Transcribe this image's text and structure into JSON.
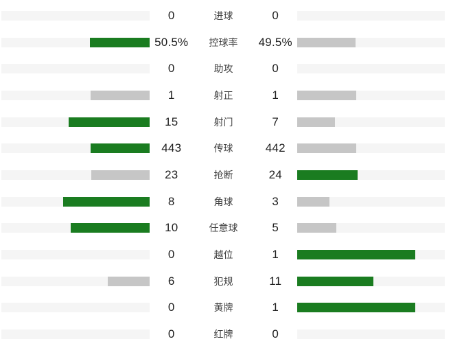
{
  "chart_data": {
    "type": "bar",
    "subtype": "mirrored-comparison-stats",
    "title": "",
    "grid": false,
    "legend_position": "none",
    "bar_max_fraction_of_track": 0.8,
    "colors": {
      "leading_bar": "#1a7c20",
      "trailing_bar": "#c6c6c6",
      "bar_track": "#f5f5f5",
      "value_text": "#1f1f1f",
      "label_text": "#404040",
      "background": "#ffffff"
    },
    "categories": [
      "进球",
      "控球率",
      "助攻",
      "射正",
      "射门",
      "传球",
      "抢断",
      "角球",
      "任意球",
      "越位",
      "犯规",
      "黄牌",
      "红牌"
    ],
    "series": [
      {
        "name": "home",
        "values": [
          0,
          50.5,
          0,
          1,
          15,
          443,
          23,
          8,
          10,
          0,
          6,
          0,
          0
        ]
      },
      {
        "name": "away",
        "values": [
          0,
          49.5,
          0,
          1,
          7,
          442,
          24,
          3,
          5,
          1,
          11,
          1,
          0
        ]
      }
    ],
    "rows": [
      {
        "label": "进球",
        "home": "0",
        "away": "0",
        "home_value": 0,
        "away_value": 0
      },
      {
        "label": "控球率",
        "home": "50.5%",
        "away": "49.5%",
        "home_value": 50.5,
        "away_value": 49.5
      },
      {
        "label": "助攻",
        "home": "0",
        "away": "0",
        "home_value": 0,
        "away_value": 0
      },
      {
        "label": "射正",
        "home": "1",
        "away": "1",
        "home_value": 1,
        "away_value": 1
      },
      {
        "label": "射门",
        "home": "15",
        "away": "7",
        "home_value": 15,
        "away_value": 7
      },
      {
        "label": "传球",
        "home": "443",
        "away": "442",
        "home_value": 443,
        "away_value": 442
      },
      {
        "label": "抢断",
        "home": "23",
        "away": "24",
        "home_value": 23,
        "away_value": 24
      },
      {
        "label": "角球",
        "home": "8",
        "away": "3",
        "home_value": 8,
        "away_value": 3
      },
      {
        "label": "任意球",
        "home": "10",
        "away": "5",
        "home_value": 10,
        "away_value": 5
      },
      {
        "label": "越位",
        "home": "0",
        "away": "1",
        "home_value": 0,
        "away_value": 1
      },
      {
        "label": "犯规",
        "home": "6",
        "away": "11",
        "home_value": 6,
        "away_value": 11
      },
      {
        "label": "黄牌",
        "home": "0",
        "away": "1",
        "home_value": 0,
        "away_value": 1
      },
      {
        "label": "红牌",
        "home": "0",
        "away": "0",
        "home_value": 0,
        "away_value": 0
      }
    ]
  }
}
